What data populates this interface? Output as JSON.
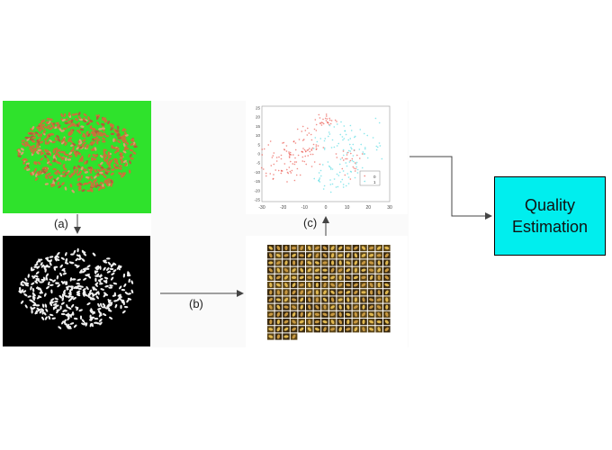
{
  "diagram": {
    "steps": {
      "a": "(a)",
      "b": "(b)",
      "c": "(c)"
    },
    "output_box": {
      "line1": "Quality",
      "line2": "Estimation",
      "fill_color": "#00eeee"
    },
    "scatter_plot": {
      "x_ticks": [
        "-30",
        "-20",
        "-10",
        "0",
        "10",
        "20",
        "30"
      ],
      "y_ticks": [
        "25",
        "20",
        "15",
        "10",
        "5",
        "0",
        "-5",
        "-10",
        "-15",
        "-20",
        "-25"
      ],
      "legend": [
        "0",
        "1"
      ],
      "series_colors": [
        "#e8463c",
        "#46d8e0"
      ]
    },
    "colors": {
      "background_green": "#2fe22c",
      "mask_background": "#000000",
      "arrow": "#444444"
    }
  }
}
